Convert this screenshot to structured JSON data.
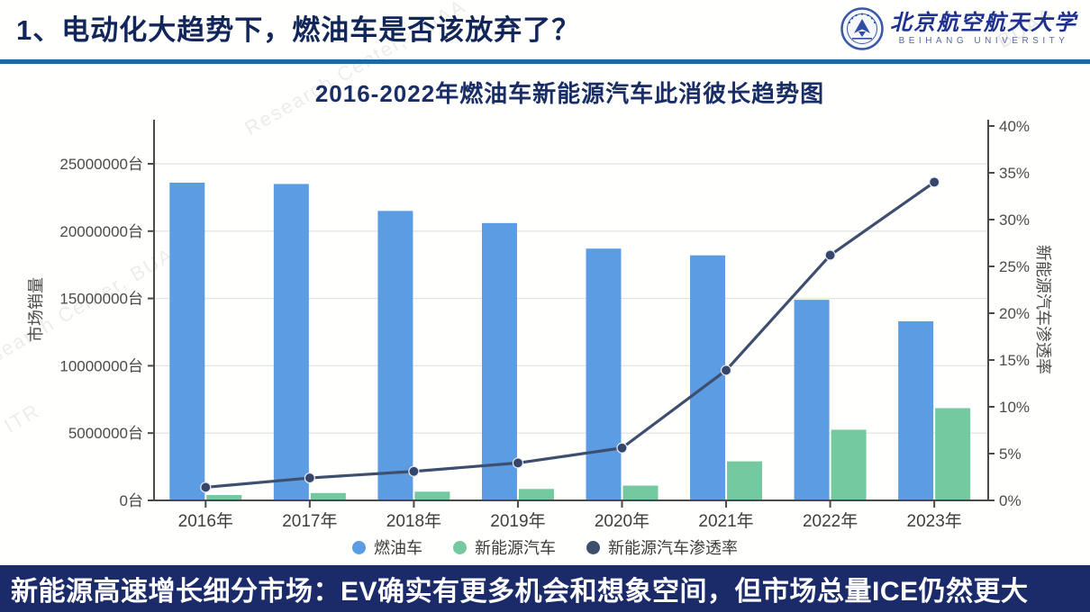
{
  "header": {
    "title": "1、电动化大趋势下，燃油车是否该放弃了？",
    "logo": {
      "name_cn": "北京航空航天大学",
      "name_en": "BEIHANG UNIVERSITY"
    }
  },
  "chart_data": {
    "type": "combo",
    "title": "2016-2022年燃油车新能源汽车此消彼长趋势图",
    "categories": [
      "2016年",
      "2017年",
      "2018年",
      "2019年",
      "2020年",
      "2021年",
      "2022年",
      "2023年"
    ],
    "series": [
      {
        "name": "燃油车",
        "chart": "bar",
        "axis": "left",
        "color": "#5C9CE3",
        "values": [
          23600000,
          23500000,
          21500000,
          20600000,
          18700000,
          18200000,
          14900000,
          13300000
        ]
      },
      {
        "name": "新能源汽车",
        "chart": "bar",
        "axis": "left",
        "color": "#74C9A0",
        "values": [
          400000,
          550000,
          650000,
          850000,
          1100000,
          2900000,
          5250000,
          6850000
        ]
      },
      {
        "name": "新能源汽车渗透率",
        "chart": "line",
        "axis": "right",
        "color": "#3E4E6E",
        "unit": "%",
        "values": [
          1.4,
          2.4,
          3.1,
          4.0,
          5.6,
          13.9,
          26.2,
          34.0
        ]
      }
    ],
    "left_axis": {
      "label": "市场销量",
      "unit": "台",
      "min": 0,
      "max": 25000000,
      "tick_step": 5000000,
      "ticks": [
        "0台",
        "5000000台",
        "10000000台",
        "15000000台",
        "20000000台",
        "25000000台"
      ]
    },
    "right_axis": {
      "label": "新能源汽车渗透率",
      "unit": "%",
      "min": 0,
      "max": 40,
      "tick_step": 5,
      "ticks": [
        "0%",
        "5%",
        "10%",
        "15%",
        "20%",
        "25%",
        "30%",
        "35%",
        "40%"
      ]
    },
    "legend_position": "bottom",
    "grid": true
  },
  "banner": {
    "text": "新能源高速增长细分市场：EV确实有更多机会和想象空间，但市场总量ICE仍然更大"
  },
  "watermarks": {
    "w1": "Research Center, BUAA",
    "w2": "Research Center, BUAA",
    "w3": "BUAA",
    "w4": "ITR"
  }
}
